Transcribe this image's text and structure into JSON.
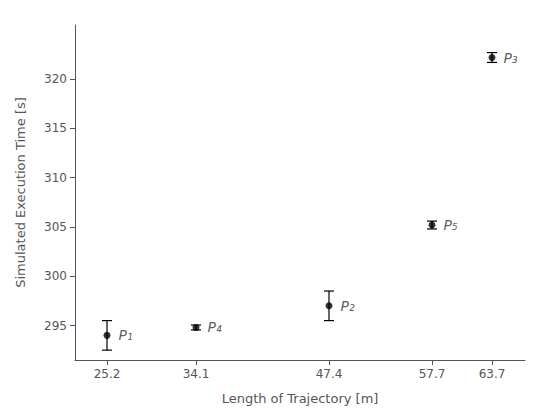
{
  "chart_data": {
    "type": "scatter",
    "xlabel": "Length of Trajectory [m]",
    "ylabel": "Simulated Execution Time [s]",
    "x": [
      25.2,
      34.1,
      47.4,
      57.7,
      63.7
    ],
    "values": [
      294.0,
      294.8,
      297.0,
      305.2,
      322.2
    ],
    "yerr": [
      1.5,
      0.25,
      1.5,
      0.4,
      0.5
    ],
    "annotations": [
      "P₁",
      "P₄",
      "P₂",
      "P₅",
      "P₃"
    ],
    "xlim": [
      22.0,
      67.0
    ],
    "ylim": [
      291.5,
      325.5
    ],
    "xticks": [
      25.2,
      34.1,
      47.4,
      57.7,
      63.7
    ],
    "yticks": [
      295,
      300,
      305,
      310,
      315,
      320
    ],
    "color": "#000000",
    "marker": "circle",
    "grid": false
  }
}
